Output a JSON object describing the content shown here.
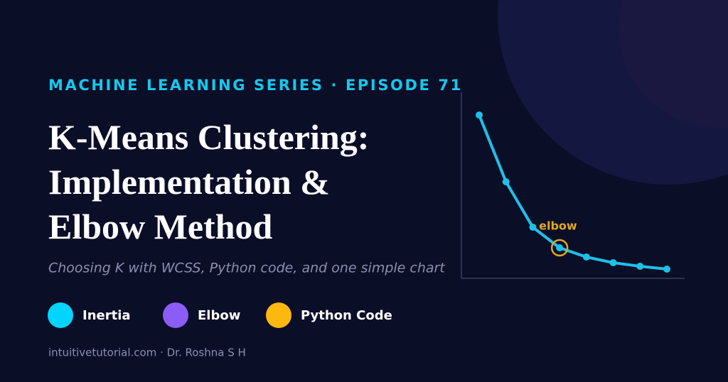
{
  "header": {
    "series": "MACHINE LEARNING SERIES · EPISODE 71",
    "title_lines": [
      "K-Means Clustering:",
      "Implementation &",
      "Elbow Method"
    ],
    "subtitle": "Choosing K with WCSS, Python code, and one simple chart"
  },
  "legend": [
    {
      "label": "Inertia",
      "color": "#00d4ff"
    },
    {
      "label": "Elbow",
      "color": "#8b5cf6"
    },
    {
      "label": "Python Code",
      "color": "#fbb80f"
    }
  ],
  "footer": "intuitivetutorial.com · Dr. Roshna S H",
  "chart_data": {
    "type": "line",
    "categories": [
      null,
      null,
      null,
      null,
      null,
      null,
      null,
      null
    ],
    "series": [
      {
        "color": "#1ec0e8",
        "values": [
          230,
          136,
          72,
          43,
          30,
          22,
          17,
          13
        ]
      }
    ],
    "ylim": [
      0,
      262
    ],
    "annotation": {
      "text": "elbow",
      "index": 3,
      "color": "#e0a820"
    }
  }
}
